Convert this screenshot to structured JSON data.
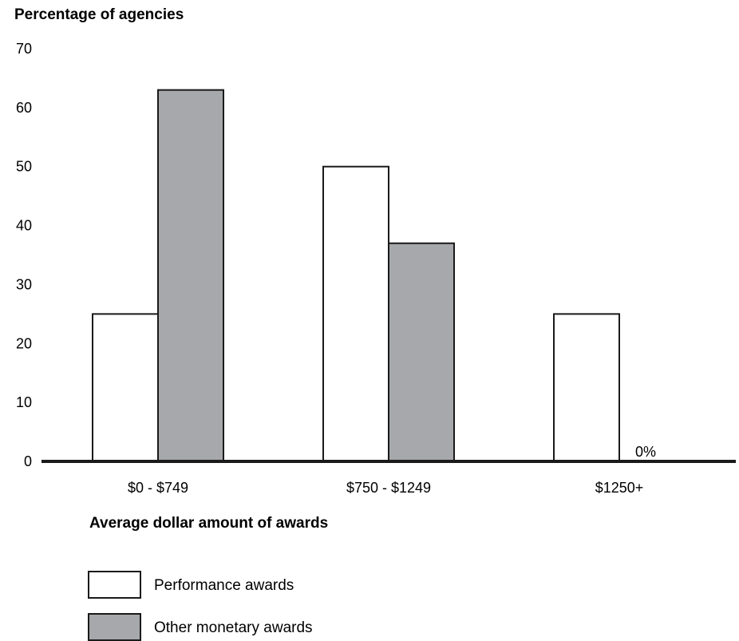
{
  "chart_data": {
    "type": "bar",
    "ylabel": "Percentage of agencies",
    "xlabel": "Average dollar amount of awards",
    "categories": [
      "$0 - $749",
      "$750 - $1249",
      "$1250+"
    ],
    "series": [
      {
        "name": "Performance awards",
        "values": [
          25,
          50,
          25
        ],
        "color": "#ffffff"
      },
      {
        "name": "Other monetary awards",
        "values": [
          63,
          37,
          0
        ],
        "color": "#a7a8ab"
      }
    ],
    "ylim": [
      0,
      70
    ],
    "yticks": [
      0,
      10,
      20,
      30,
      40,
      50,
      60,
      70
    ],
    "annotations": [
      {
        "text": "0%",
        "category": "$1250+",
        "series": "Other monetary awards"
      }
    ],
    "grid": false,
    "legend_position": "bottom-left"
  }
}
